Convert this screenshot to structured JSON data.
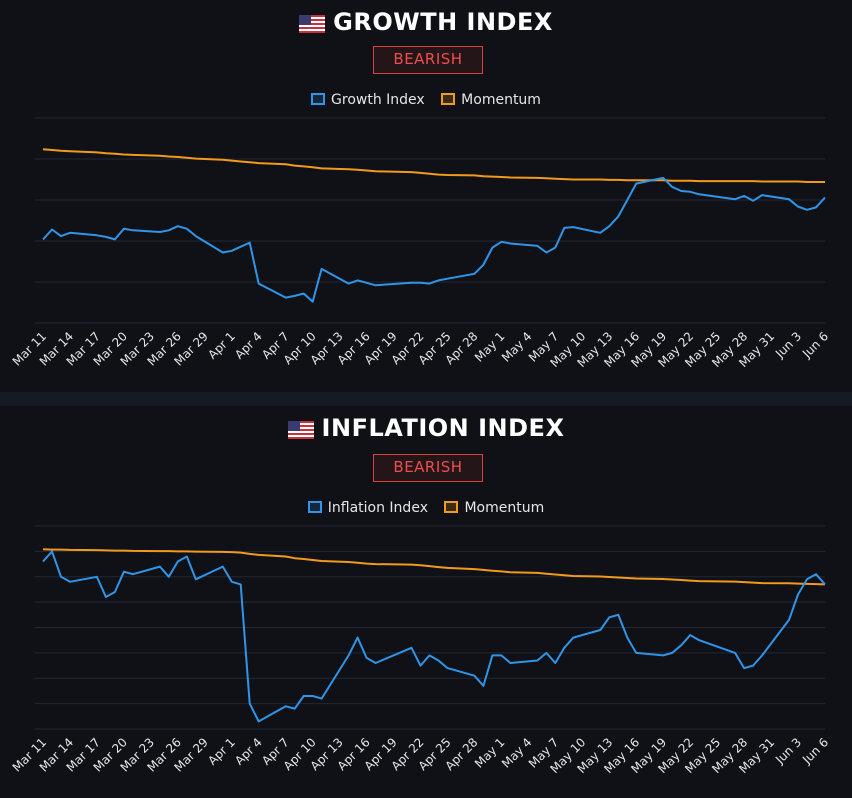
{
  "colors": {
    "index": "#2f95e8",
    "momentum": "#f39a1c",
    "badge": "#ef4d4d",
    "grid": "#232733",
    "background": "#0f1117"
  },
  "chart_data": [
    {
      "type": "line",
      "title": "GROWTH INDEX",
      "badge": "BEARISH",
      "flag_icon": "us-flag-icon",
      "legend_position": "top-center",
      "grid": true,
      "x_tick_labels": [
        "Mar 11",
        "Mar 14",
        "Mar 17",
        "Mar 20",
        "Mar 23",
        "Mar 26",
        "Mar 29",
        "Apr 1",
        "Apr 4",
        "Apr 7",
        "Apr 10",
        "Apr 13",
        "Apr 16",
        "Apr 19",
        "Apr 22",
        "Apr 25",
        "Apr 28",
        "May 1",
        "May 4",
        "May 7",
        "May 10",
        "May 13",
        "May 16",
        "May 19",
        "May 22",
        "May 25",
        "May 28",
        "May 31",
        "Jun 3",
        "Jun 6"
      ],
      "x": [
        "2025-03-11",
        "2025-03-12",
        "2025-03-13",
        "2025-03-14",
        "2025-03-17",
        "2025-03-18",
        "2025-03-19",
        "2025-03-20",
        "2025-03-21",
        "2025-03-24",
        "2025-03-25",
        "2025-03-26",
        "2025-03-27",
        "2025-03-28",
        "2025-03-31",
        "2025-04-01",
        "2025-04-02",
        "2025-04-03",
        "2025-04-04",
        "2025-04-07",
        "2025-04-08",
        "2025-04-09",
        "2025-04-10",
        "2025-04-11",
        "2025-04-14",
        "2025-04-15",
        "2025-04-16",
        "2025-04-17",
        "2025-04-21",
        "2025-04-22",
        "2025-04-23",
        "2025-04-24",
        "2025-04-25",
        "2025-04-28",
        "2025-04-29",
        "2025-04-30",
        "2025-05-01",
        "2025-05-02",
        "2025-05-05",
        "2025-05-06",
        "2025-05-07",
        "2025-05-08",
        "2025-05-09",
        "2025-05-12",
        "2025-05-13",
        "2025-05-14",
        "2025-05-15",
        "2025-05-16",
        "2025-05-19",
        "2025-05-20",
        "2025-05-21",
        "2025-05-22",
        "2025-05-23",
        "2025-05-27",
        "2025-05-28",
        "2025-05-29",
        "2025-05-30",
        "2025-06-02",
        "2025-06-03",
        "2025-06-04",
        "2025-06-05",
        "2025-06-06"
      ],
      "ylim": [
        0,
        5
      ],
      "series": [
        {
          "name": "Growth Index",
          "values": [
            2.04,
            2.28,
            2.12,
            2.2,
            2.14,
            2.1,
            2.04,
            2.3,
            2.26,
            2.22,
            2.26,
            2.36,
            2.3,
            2.12,
            1.72,
            1.76,
            1.86,
            1.96,
            0.96,
            0.62,
            0.66,
            0.72,
            0.52,
            1.32,
            0.96,
            1.04,
            0.98,
            0.92,
            0.98,
            0.98,
            0.96,
            1.04,
            1.08,
            1.2,
            1.42,
            1.84,
            1.98,
            1.94,
            1.88,
            1.72,
            1.84,
            2.32,
            2.34,
            2.2,
            2.36,
            2.6,
            3.0,
            3.4,
            3.54,
            3.32,
            3.22,
            3.2,
            3.14,
            3.02,
            3.1,
            2.98,
            3.12,
            3.02,
            2.84,
            2.76,
            2.82,
            3.06
          ]
        },
        {
          "name": "Momentum",
          "values": [
            4.24,
            4.22,
            4.2,
            4.19,
            4.16,
            4.14,
            4.13,
            4.11,
            4.1,
            4.08,
            4.06,
            4.05,
            4.03,
            4.01,
            3.98,
            3.96,
            3.94,
            3.92,
            3.9,
            3.87,
            3.84,
            3.82,
            3.8,
            3.77,
            3.75,
            3.74,
            3.72,
            3.7,
            3.68,
            3.66,
            3.64,
            3.62,
            3.61,
            3.6,
            3.58,
            3.57,
            3.56,
            3.55,
            3.54,
            3.53,
            3.52,
            3.51,
            3.5,
            3.5,
            3.49,
            3.49,
            3.48,
            3.48,
            3.48,
            3.47,
            3.47,
            3.47,
            3.46,
            3.46,
            3.46,
            3.46,
            3.45,
            3.45,
            3.45,
            3.44,
            3.44,
            3.44
          ]
        }
      ]
    },
    {
      "type": "line",
      "title": "INFLATION INDEX",
      "badge": "BEARISH",
      "flag_icon": "us-flag-icon",
      "legend_position": "top-center",
      "grid": true,
      "x_tick_labels": [
        "Mar 11",
        "Mar 14",
        "Mar 17",
        "Mar 20",
        "Mar 23",
        "Mar 26",
        "Mar 29",
        "Apr 1",
        "Apr 4",
        "Apr 7",
        "Apr 10",
        "Apr 13",
        "Apr 16",
        "Apr 19",
        "Apr 22",
        "Apr 25",
        "Apr 28",
        "May 1",
        "May 4",
        "May 7",
        "May 10",
        "May 13",
        "May 16",
        "May 19",
        "May 22",
        "May 25",
        "May 28",
        "May 31",
        "Jun 3",
        "Jun 6"
      ],
      "x": [
        "2025-03-11",
        "2025-03-12",
        "2025-03-13",
        "2025-03-14",
        "2025-03-17",
        "2025-03-18",
        "2025-03-19",
        "2025-03-20",
        "2025-03-21",
        "2025-03-24",
        "2025-03-25",
        "2025-03-26",
        "2025-03-27",
        "2025-03-28",
        "2025-03-31",
        "2025-04-01",
        "2025-04-02",
        "2025-04-03",
        "2025-04-04",
        "2025-04-07",
        "2025-04-08",
        "2025-04-09",
        "2025-04-10",
        "2025-04-11",
        "2025-04-14",
        "2025-04-15",
        "2025-04-16",
        "2025-04-17",
        "2025-04-21",
        "2025-04-22",
        "2025-04-23",
        "2025-04-24",
        "2025-04-25",
        "2025-04-28",
        "2025-04-29",
        "2025-04-30",
        "2025-05-01",
        "2025-05-02",
        "2025-05-05",
        "2025-05-06",
        "2025-05-07",
        "2025-05-08",
        "2025-05-09",
        "2025-05-12",
        "2025-05-13",
        "2025-05-14",
        "2025-05-15",
        "2025-05-16",
        "2025-05-19",
        "2025-05-20",
        "2025-05-21",
        "2025-05-22",
        "2025-05-23",
        "2025-05-27",
        "2025-05-28",
        "2025-05-29",
        "2025-05-30",
        "2025-06-02",
        "2025-06-03",
        "2025-06-04",
        "2025-06-05",
        "2025-06-06"
      ],
      "ylim": [
        0,
        8
      ],
      "series": [
        {
          "name": "Inflation Index",
          "values": [
            6.6,
            7.0,
            6.0,
            5.8,
            6.0,
            5.2,
            5.4,
            6.2,
            6.1,
            6.4,
            6.0,
            6.6,
            6.8,
            5.9,
            6.4,
            5.8,
            5.7,
            1.0,
            0.3,
            0.9,
            0.8,
            1.3,
            1.3,
            1.2,
            2.9,
            3.6,
            2.8,
            2.6,
            3.2,
            2.5,
            2.9,
            2.7,
            2.4,
            2.1,
            1.7,
            2.9,
            2.9,
            2.6,
            2.7,
            3.0,
            2.6,
            3.2,
            3.6,
            3.9,
            4.4,
            4.5,
            3.6,
            3.0,
            2.9,
            3.0,
            3.3,
            3.7,
            3.5,
            3.0,
            2.4,
            2.5,
            2.9,
            4.3,
            5.3,
            5.9,
            6.1,
            5.7
          ]
        },
        {
          "name": "Momentum",
          "values": [
            7.08,
            7.07,
            7.07,
            7.06,
            7.05,
            7.04,
            7.03,
            7.03,
            7.02,
            7.01,
            7.01,
            7.0,
            7.0,
            6.99,
            6.98,
            6.97,
            6.95,
            6.9,
            6.86,
            6.8,
            6.73,
            6.7,
            6.66,
            6.62,
            6.58,
            6.55,
            6.52,
            6.5,
            6.48,
            6.45,
            6.42,
            6.38,
            6.35,
            6.3,
            6.27,
            6.24,
            6.21,
            6.18,
            6.15,
            6.12,
            6.09,
            6.06,
            6.03,
            6.01,
            5.99,
            5.97,
            5.95,
            5.93,
            5.91,
            5.89,
            5.87,
            5.85,
            5.83,
            5.81,
            5.79,
            5.77,
            5.75,
            5.74,
            5.73,
            5.72,
            5.71,
            5.7
          ]
        }
      ]
    }
  ]
}
